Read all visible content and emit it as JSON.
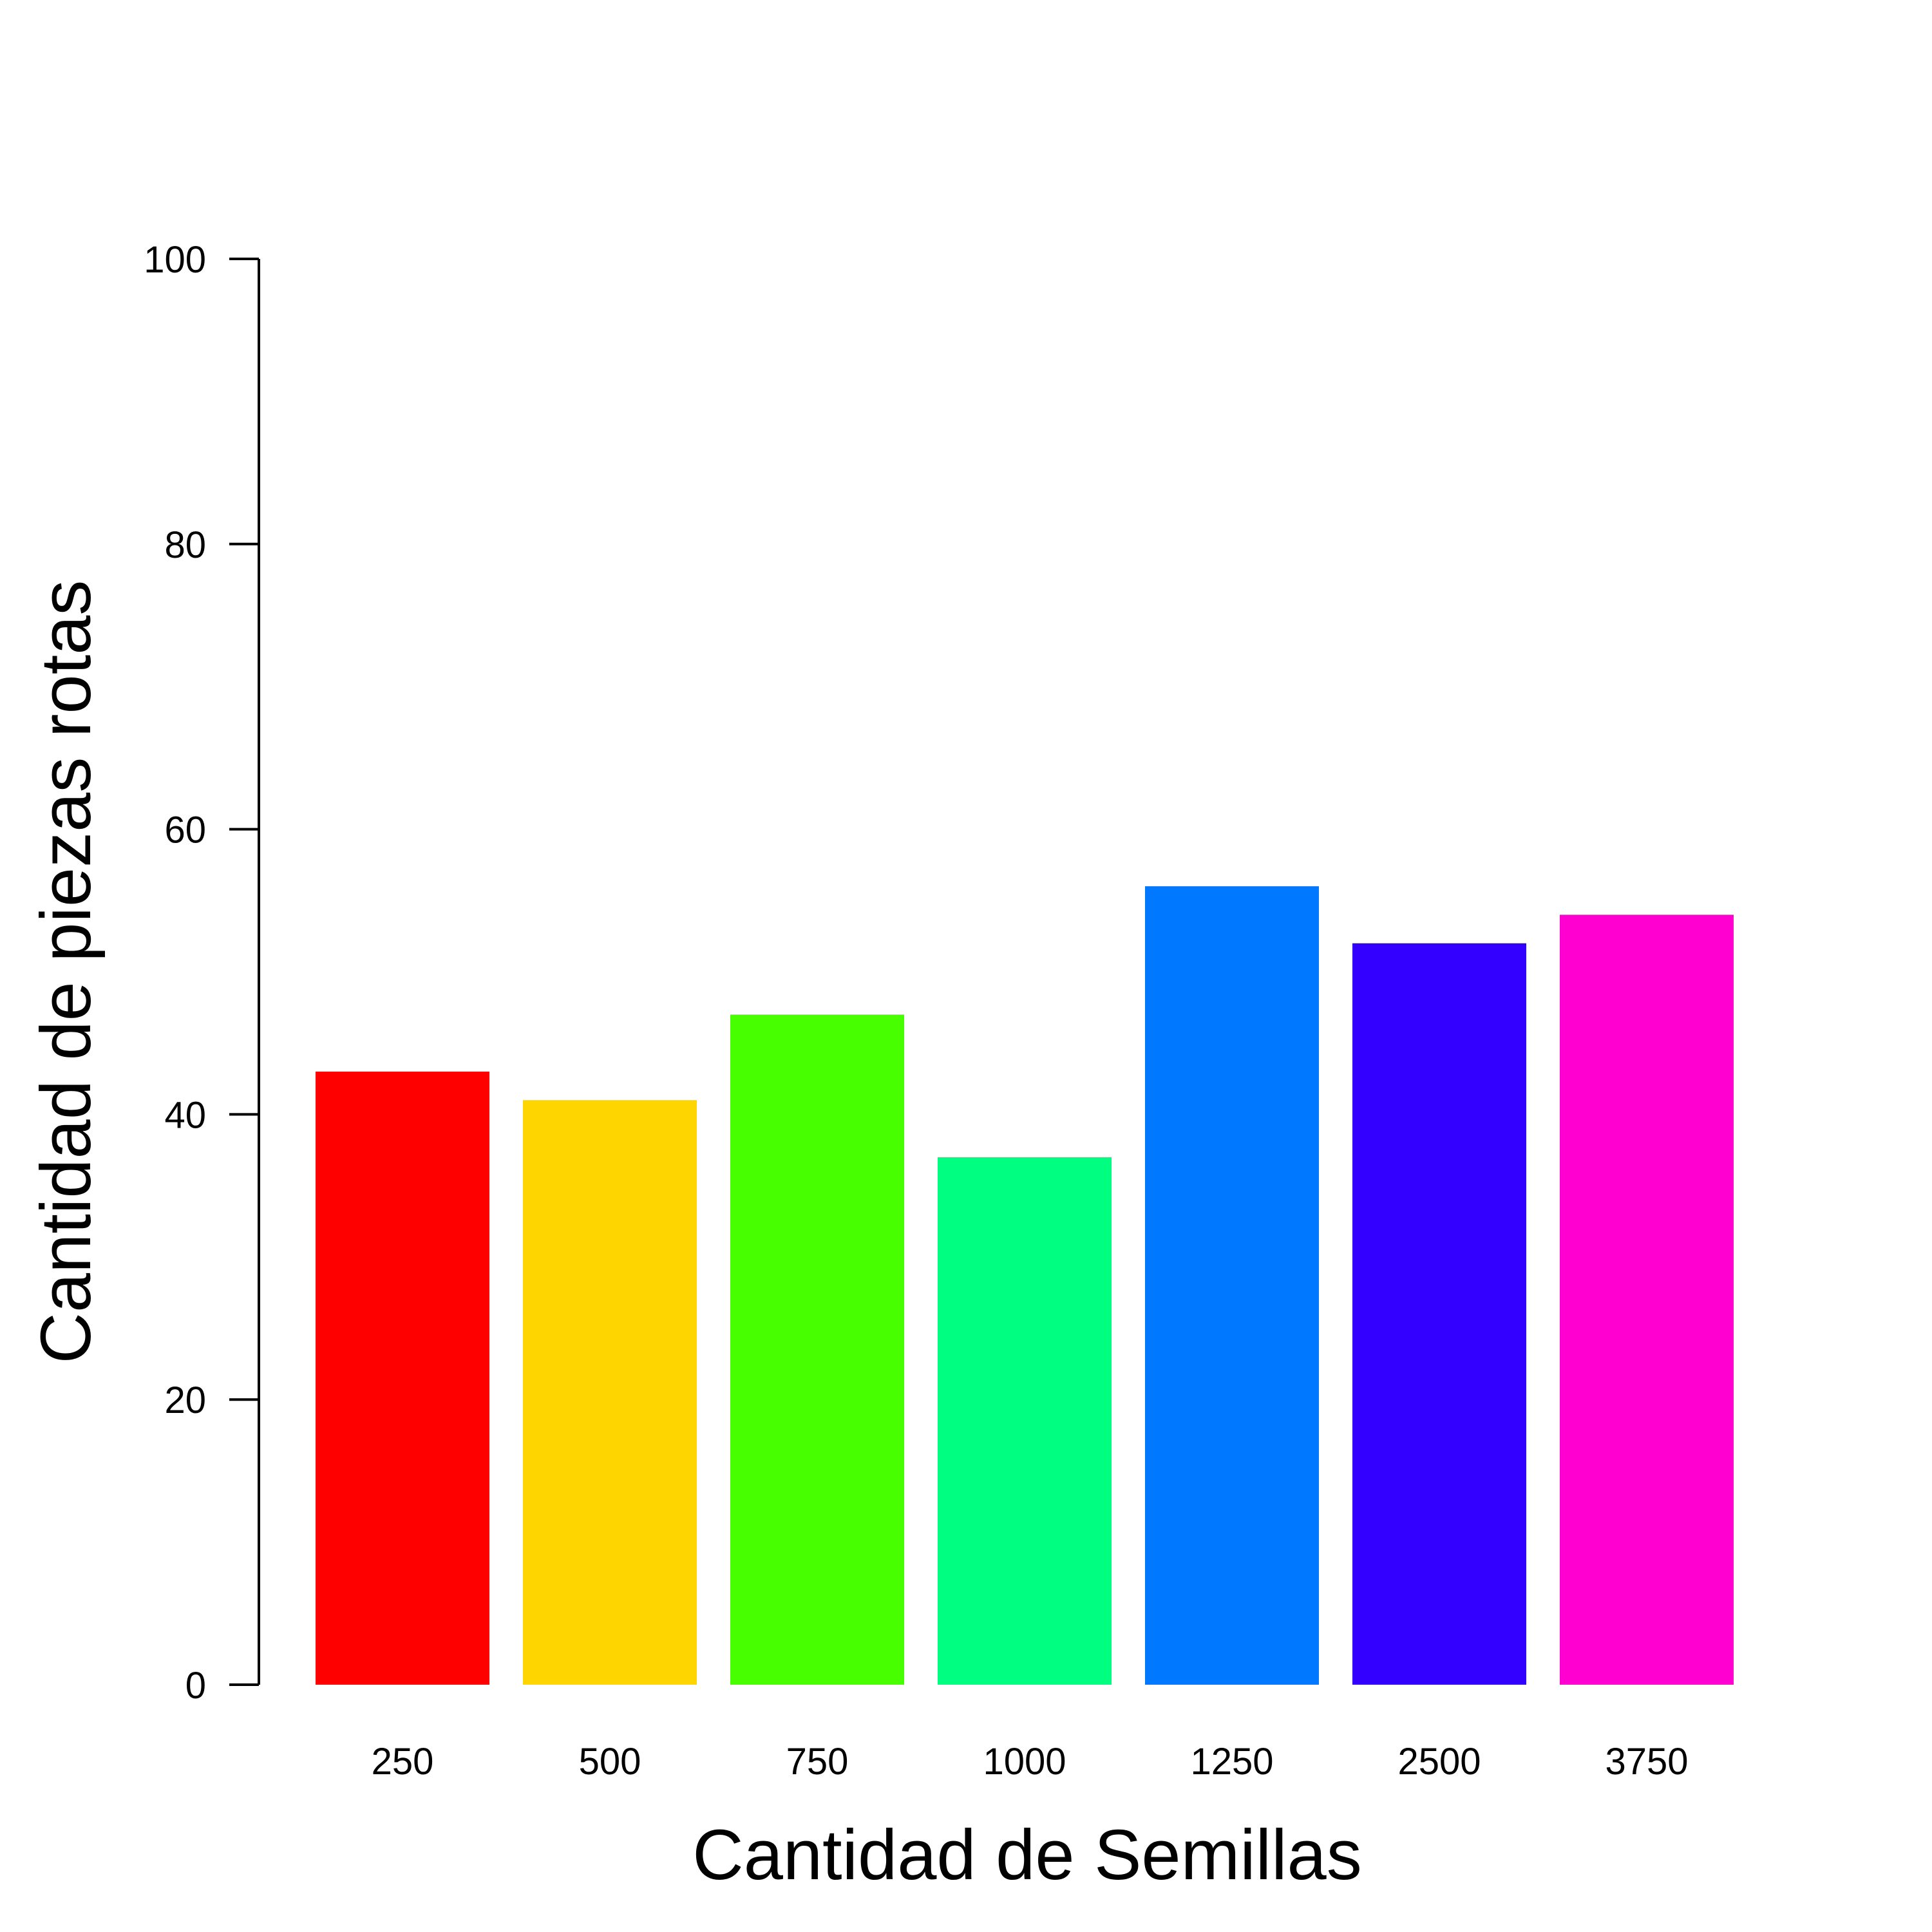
{
  "chart_data": {
    "type": "bar",
    "title": "",
    "xlabel": "Cantidad de Semillas",
    "ylabel": "Cantidad de piezas rotas",
    "categories": [
      "250",
      "500",
      "750",
      "1000",
      "1250",
      "2500",
      "3750"
    ],
    "values": [
      43,
      41,
      47,
      37,
      56,
      52,
      54
    ],
    "colors": [
      "#FF0000",
      "#FFD500",
      "#48FF00",
      "#00FF80",
      "#0078FF",
      "#3300FF",
      "#FF00D0"
    ],
    "ylim": [
      0,
      100
    ],
    "yticks": [
      0,
      20,
      40,
      60,
      80,
      100
    ],
    "grid": false,
    "legend": "none"
  }
}
